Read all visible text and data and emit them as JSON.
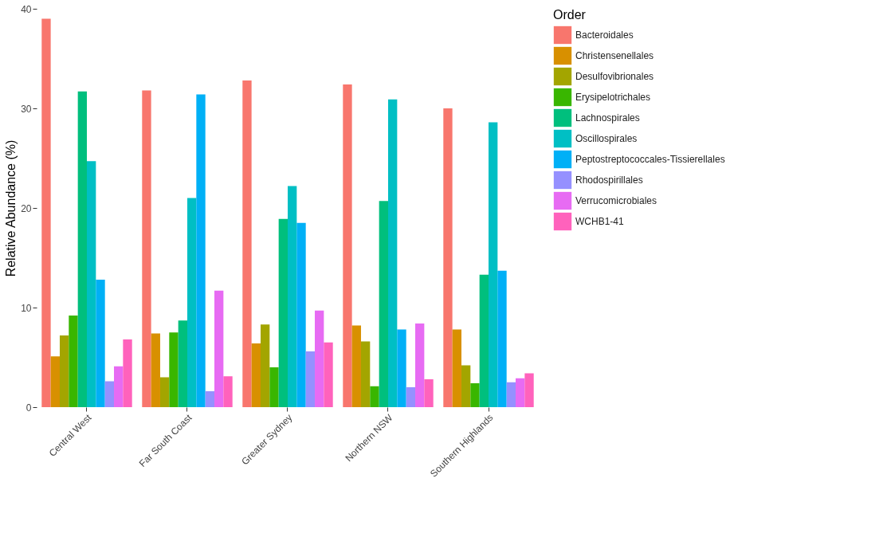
{
  "chart_data": {
    "type": "bar",
    "ylabel": "Relative Abundance (%)",
    "legend_title": "Order",
    "legend": "right",
    "grid": false,
    "categories": [
      "Central West",
      "Far South Coast",
      "Greater Sydney",
      "Northern NSW",
      "Southern Highlands"
    ],
    "ylim": [
      0,
      40
    ],
    "yticks": [
      0,
      10,
      20,
      30,
      40
    ],
    "series": [
      {
        "name": "Bacteroidales",
        "color": "#f8766d",
        "values": [
          39.0,
          31.8,
          32.8,
          32.4,
          30.0
        ]
      },
      {
        "name": "Christensenellales",
        "color": "#d89000",
        "values": [
          5.1,
          7.4,
          6.4,
          8.2,
          7.8
        ]
      },
      {
        "name": "Desulfovibrionales",
        "color": "#a3a500",
        "values": [
          7.2,
          3.0,
          8.3,
          6.6,
          4.2
        ]
      },
      {
        "name": "Erysipelotrichales",
        "color": "#39b600",
        "values": [
          9.2,
          7.5,
          4.0,
          2.1,
          2.4
        ]
      },
      {
        "name": "Lachnospirales",
        "color": "#00bf7d",
        "values": [
          31.7,
          8.7,
          18.9,
          20.7,
          13.3
        ]
      },
      {
        "name": "Oscillospirales",
        "color": "#00bfc4",
        "values": [
          24.7,
          21.0,
          22.2,
          30.9,
          28.6
        ]
      },
      {
        "name": "Peptostreptococcales-Tissierellales",
        "color": "#00b0f6",
        "values": [
          12.8,
          31.4,
          18.5,
          7.8,
          13.7
        ]
      },
      {
        "name": "Rhodospirillales",
        "color": "#9590ff",
        "values": [
          2.6,
          1.6,
          5.6,
          2.0,
          2.5
        ]
      },
      {
        "name": "Verrucomicrobiales",
        "color": "#e76bf3",
        "values": [
          4.1,
          11.7,
          9.7,
          8.4,
          2.9
        ]
      },
      {
        "name": "WCHB1-41",
        "color": "#ff62bc",
        "values": [
          6.8,
          3.1,
          6.5,
          2.8,
          3.4
        ]
      }
    ]
  }
}
